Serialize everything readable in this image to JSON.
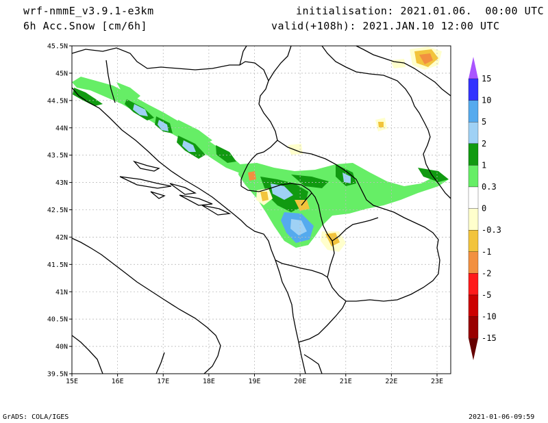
{
  "header": {
    "model": "wrf-nmmE_v3.9.1-e3km",
    "field": "6h Acc.Snow [cm/6h]",
    "initialisation": "initialisation: 2021.01.06.  00:00 UTC",
    "valid": "valid(+108h): 2021.JAN.10 12:00 UTC"
  },
  "footer": {
    "left": "GrADS: COLA/IGES",
    "right": "2021-01-06-09:59"
  },
  "map": {
    "lon_ticks": [
      "15E",
      "16E",
      "17E",
      "18E",
      "19E",
      "20E",
      "21E",
      "22E",
      "23E"
    ],
    "lat_ticks": [
      "45.5N",
      "45N",
      "44.5N",
      "44N",
      "43.5N",
      "43N",
      "42.5N",
      "42N",
      "41.5N",
      "41N",
      "40.5N",
      "40N",
      "39.5N"
    ],
    "lon_range": [
      15,
      23.3
    ],
    "lat_range": [
      39.5,
      45.5
    ],
    "grid": true
  },
  "colorbar": {
    "levels": [
      "15",
      "10",
      "5",
      "2",
      "1",
      "0.3",
      "0",
      "-0.3",
      "-1",
      "-2",
      "-5",
      "-10",
      "-15"
    ],
    "colors": [
      "#7b00ff",
      "#3333ff",
      "#55aaee",
      "#9fd1f5",
      "#119a11",
      "#66ee66",
      "#ffffff",
      "#ffffcc",
      "#f2c43c",
      "#f29040",
      "#ff1a1a",
      "#cc0000",
      "#990000",
      "#660000"
    ],
    "top_arrow_color": "#aa55ff",
    "bottom_arrow_color": "#660000"
  }
}
